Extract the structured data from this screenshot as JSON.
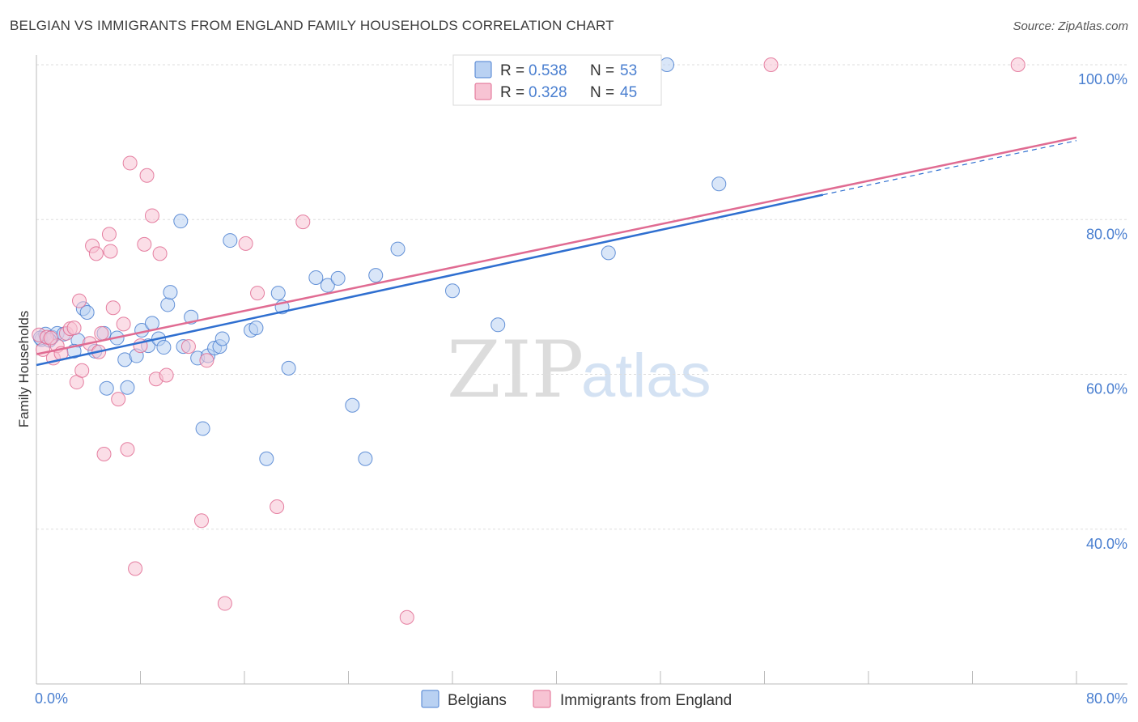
{
  "title": "BELGIAN VS IMMIGRANTS FROM ENGLAND FAMILY HOUSEHOLDS CORRELATION CHART",
  "source": "Source: ZipAtlas.com",
  "watermark": {
    "zip": "ZIP",
    "atlas": "atlas"
  },
  "colors": {
    "belgian": "#4a7fd0",
    "belgian_fill": "#b9d1f2",
    "england": "#e06b92",
    "england_fill": "#f7c3d3",
    "axis_text": "#4a7fd0",
    "grid": "#dddddd"
  },
  "legend": {
    "rows": [
      {
        "r_label": "R =",
        "r_value": "0.538",
        "n_label": "N =",
        "n_value": "53"
      },
      {
        "r_label": "R =",
        "r_value": "0.328",
        "n_label": "N =",
        "n_value": "45"
      }
    ]
  },
  "bottom_legend": [
    "Belgians",
    "Immigrants from England"
  ],
  "chart_data": {
    "type": "scatter",
    "title": "BELGIAN VS IMMIGRANTS FROM ENGLAND FAMILY HOUSEHOLDS CORRELATION CHART",
    "xlabel": "",
    "ylabel": "Family Households",
    "xlim": [
      0,
      80
    ],
    "ylim": [
      20,
      100
    ],
    "x_tick_labels": [
      "0.0%",
      "80.0%"
    ],
    "y_ticks": [
      40,
      60,
      80,
      100
    ],
    "y_tick_labels": [
      "40.0%",
      "60.0%",
      "80.0%",
      "100.0%"
    ],
    "grid": true,
    "series": [
      {
        "name": "Belgians",
        "r": 0.538,
        "n": 53,
        "trend": {
          "x0": 0,
          "y0": 61.2,
          "x1": 60.5,
          "y1": 83.2,
          "dash_x1": 80,
          "dash_y1": 90.2
        },
        "points": [
          [
            0.4,
            64.5
          ],
          [
            0.7,
            65.2
          ],
          [
            1.2,
            64.8
          ],
          [
            1.6,
            65.3
          ],
          [
            2.1,
            65.2
          ],
          [
            3.2,
            64.4
          ],
          [
            2.9,
            63.0
          ],
          [
            4.5,
            63.0
          ],
          [
            3.6,
            68.5
          ],
          [
            3.9,
            68.0
          ],
          [
            5.2,
            65.3
          ],
          [
            6.2,
            64.7
          ],
          [
            5.4,
            58.2
          ],
          [
            7.0,
            58.3
          ],
          [
            6.8,
            61.9
          ],
          [
            7.7,
            62.4
          ],
          [
            8.1,
            65.7
          ],
          [
            8.6,
            63.7
          ],
          [
            8.9,
            66.6
          ],
          [
            9.4,
            64.6
          ],
          [
            9.8,
            63.5
          ],
          [
            10.1,
            69.0
          ],
          [
            10.3,
            70.6
          ],
          [
            11.1,
            79.8
          ],
          [
            11.3,
            63.6
          ],
          [
            11.9,
            67.4
          ],
          [
            12.4,
            62.1
          ],
          [
            12.8,
            53.0
          ],
          [
            13.2,
            62.4
          ],
          [
            13.7,
            63.4
          ],
          [
            14.1,
            63.6
          ],
          [
            14.3,
            64.6
          ],
          [
            14.9,
            77.3
          ],
          [
            16.5,
            65.7
          ],
          [
            16.9,
            66.0
          ],
          [
            17.7,
            49.1
          ],
          [
            18.6,
            70.5
          ],
          [
            18.9,
            68.7
          ],
          [
            19.4,
            60.8
          ],
          [
            21.5,
            72.5
          ],
          [
            22.4,
            71.5
          ],
          [
            23.2,
            72.4
          ],
          [
            24.3,
            56.0
          ],
          [
            25.3,
            49.1
          ],
          [
            26.1,
            72.8
          ],
          [
            27.8,
            76.2
          ],
          [
            32.0,
            70.8
          ],
          [
            35.5,
            66.4
          ],
          [
            44.0,
            75.7
          ],
          [
            52.5,
            84.6
          ],
          [
            48.5,
            100.0
          ],
          [
            0.3,
            64.7
          ],
          [
            1.0,
            64.4
          ]
        ]
      },
      {
        "name": "Immigrants from England",
        "r": 0.328,
        "n": 45,
        "trend": {
          "x0": 0,
          "y0": 62.6,
          "x1": 80,
          "y1": 90.6
        },
        "points": [
          [
            0.2,
            65.1
          ],
          [
            0.5,
            63.2
          ],
          [
            0.8,
            64.8
          ],
          [
            1.3,
            62.1
          ],
          [
            1.6,
            63.7
          ],
          [
            1.9,
            62.7
          ],
          [
            2.3,
            65.3
          ],
          [
            2.6,
            65.9
          ],
          [
            2.9,
            66.0
          ],
          [
            3.1,
            59.0
          ],
          [
            3.3,
            69.5
          ],
          [
            3.5,
            60.5
          ],
          [
            4.1,
            64.0
          ],
          [
            4.3,
            76.6
          ],
          [
            4.6,
            75.6
          ],
          [
            4.8,
            62.9
          ],
          [
            5.0,
            65.3
          ],
          [
            5.2,
            49.7
          ],
          [
            5.6,
            78.1
          ],
          [
            5.7,
            75.9
          ],
          [
            5.9,
            68.6
          ],
          [
            6.3,
            56.8
          ],
          [
            6.7,
            66.5
          ],
          [
            7.0,
            50.3
          ],
          [
            7.2,
            87.3
          ],
          [
            7.6,
            34.9
          ],
          [
            8.0,
            63.7
          ],
          [
            8.3,
            76.8
          ],
          [
            8.5,
            85.7
          ],
          [
            8.9,
            80.5
          ],
          [
            9.2,
            59.4
          ],
          [
            9.5,
            75.6
          ],
          [
            10.0,
            59.9
          ],
          [
            11.7,
            63.6
          ],
          [
            12.7,
            41.1
          ],
          [
            13.1,
            61.8
          ],
          [
            14.5,
            30.4
          ],
          [
            16.1,
            76.9
          ],
          [
            17.0,
            70.5
          ],
          [
            18.5,
            42.9
          ],
          [
            20.5,
            79.7
          ],
          [
            28.5,
            28.6
          ],
          [
            56.5,
            100.0
          ],
          [
            75.5,
            100.0
          ],
          [
            1.1,
            64.7
          ]
        ]
      }
    ]
  }
}
